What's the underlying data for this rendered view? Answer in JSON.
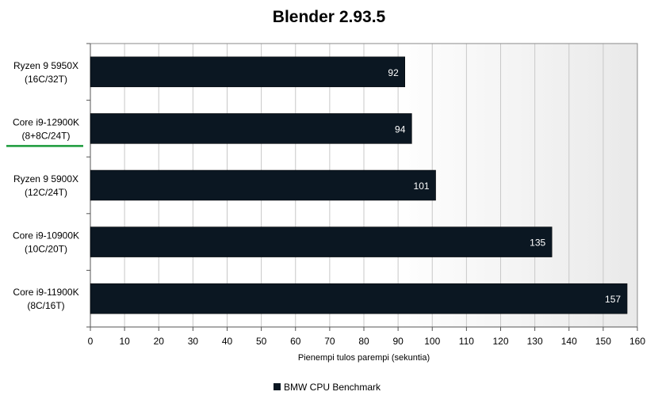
{
  "chart_data": {
    "type": "bar",
    "orientation": "horizontal",
    "title": "Blender 2.93.5",
    "xlabel": "Pienempi tulos parempi (sekuntia)",
    "ylabel": "",
    "categories": [
      [
        "Ryzen 9 5950X",
        "(16C/32T)"
      ],
      [
        "Core i9-12900K",
        "(8+8C/24T)"
      ],
      [
        "Ryzen 9 5900X",
        "(12C/24T)"
      ],
      [
        "Core i9-10900K",
        "(10C/20T)"
      ],
      [
        "Core i9-11900K",
        "(8C/16T)"
      ]
    ],
    "series": [
      {
        "name": "BMW CPU Benchmark",
        "values": [
          92,
          94,
          101,
          135,
          157
        ]
      }
    ],
    "xlim": [
      0,
      160
    ],
    "xticks": [
      0,
      10,
      20,
      30,
      40,
      50,
      60,
      70,
      80,
      90,
      100,
      110,
      120,
      130,
      140,
      150,
      160
    ],
    "grid": true,
    "legend_position": "bottom",
    "highlighted_category_index": 1,
    "colors": {
      "bar": "#0b1722",
      "grid": "#c8c8c8",
      "highlight_underline": "#1a9a3a",
      "plot_gradient_end": "#e9e9e9"
    }
  }
}
